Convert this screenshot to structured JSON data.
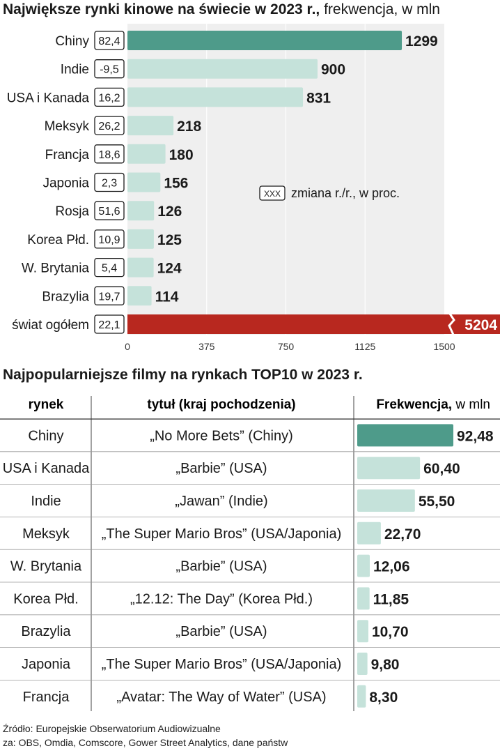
{
  "chart_data": [
    {
      "type": "bar",
      "title": "Największe rynki kinowe na świecie w 2023 r.,",
      "subtitle": "frekwencja, w mln",
      "categories": [
        "Chiny",
        "Indie",
        "USA i Kanada",
        "Meksyk",
        "Francja",
        "Japonia",
        "Rosja",
        "Korea Płd.",
        "W. Brytania",
        "Brazylia",
        "świat ogółem"
      ],
      "values": [
        1299,
        900,
        831,
        218,
        180,
        156,
        126,
        125,
        124,
        114,
        5204
      ],
      "value_labels": [
        "1299",
        "900",
        "831",
        "218",
        "180",
        "156",
        "126",
        "125",
        "124",
        "114",
        "5204"
      ],
      "change_pct": [
        "82,4",
        "-9,5",
        "16,2",
        "26,2",
        "18,6",
        "2,3",
        "51,6",
        "10,9",
        "5,4",
        "19,7",
        "22,1"
      ],
      "xlim": [
        0,
        1500
      ],
      "xticks": [
        "0",
        "375",
        "750",
        "1125",
        "1500"
      ],
      "axis_break_on_last": true,
      "legend_box": "XXX",
      "legend_text": "zmiana r./r., w proc.",
      "colors": {
        "highlight": "#4e9b8a",
        "regular": "#c5e2da",
        "total": "#b8281f",
        "plot_bg": "#efefef"
      }
    },
    {
      "type": "table",
      "title": "Najpopularniejsze filmy na rynkach TOP10 w 2023 r.",
      "columns": [
        "rynek",
        "tytuł (kraj pochodzenia)",
        "Frekwencja,"
      ],
      "column_unit": "w mln",
      "rows": [
        {
          "market": "Chiny",
          "title": "„No More Bets” (Chiny)",
          "value": 92.48,
          "label": "92,48"
        },
        {
          "market": "USA i Kanada",
          "title": "„Barbie” (USA)",
          "value": 60.4,
          "label": "60,40"
        },
        {
          "market": "Indie",
          "title": "„Jawan” (Indie)",
          "value": 55.5,
          "label": "55,50"
        },
        {
          "market": "Meksyk",
          "title": "„The Super Mario Bros” (USA/Japonia)",
          "value": 22.7,
          "label": "22,70"
        },
        {
          "market": "W. Brytania",
          "title": "„Barbie” (USA)",
          "value": 12.06,
          "label": "12,06"
        },
        {
          "market": "Korea Płd.",
          "title": "„12.12: The Day” (Korea Płd.)",
          "value": 11.85,
          "label": "11,85"
        },
        {
          "market": "Brazylia",
          "title": "„Barbie” (USA)",
          "value": 10.7,
          "label": "10,70"
        },
        {
          "market": "Japonia",
          "title": "„The Super Mario Bros” (USA/Japonia)",
          "value": 9.8,
          "label": "9,80"
        },
        {
          "market": "Francja",
          "title": "„Avatar: The Way of Water” (USA)",
          "value": 8.3,
          "label": "8,30"
        }
      ],
      "colors": {
        "highlight": "#4e9b8a",
        "regular": "#c5e2da"
      }
    }
  ],
  "source": {
    "line1": "Źródło: Europejskie Obserwatorium Audiowizualne",
    "line2": "za: OBS, Omdia, Comscore, Gower Street Analytics, dane państw"
  }
}
